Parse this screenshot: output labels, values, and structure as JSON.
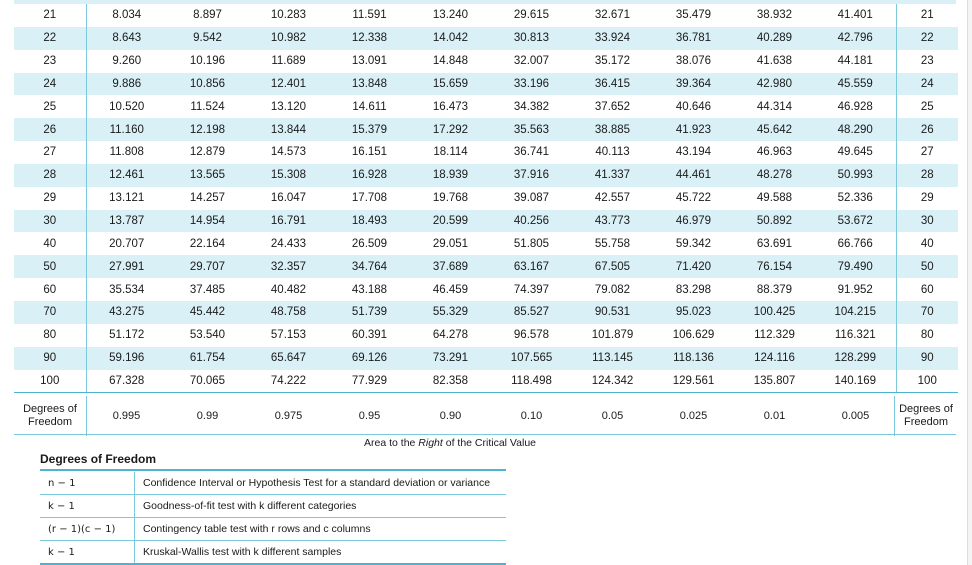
{
  "table": {
    "rows": [
      {
        "df": "21",
        "values": [
          "8.034",
          "8.897",
          "10.283",
          "11.591",
          "13.240",
          "29.615",
          "32.671",
          "35.479",
          "38.932",
          "41.401"
        ]
      },
      {
        "df": "22",
        "values": [
          "8.643",
          "9.542",
          "10.982",
          "12.338",
          "14.042",
          "30.813",
          "33.924",
          "36.781",
          "40.289",
          "42.796"
        ]
      },
      {
        "df": "23",
        "values": [
          "9.260",
          "10.196",
          "11.689",
          "13.091",
          "14.848",
          "32.007",
          "35.172",
          "38.076",
          "41.638",
          "44.181"
        ]
      },
      {
        "df": "24",
        "values": [
          "9.886",
          "10.856",
          "12.401",
          "13.848",
          "15.659",
          "33.196",
          "36.415",
          "39.364",
          "42.980",
          "45.559"
        ]
      },
      {
        "df": "25",
        "values": [
          "10.520",
          "11.524",
          "13.120",
          "14.611",
          "16.473",
          "34.382",
          "37.652",
          "40.646",
          "44.314",
          "46.928"
        ]
      },
      {
        "df": "26",
        "values": [
          "11.160",
          "12.198",
          "13.844",
          "15.379",
          "17.292",
          "35.563",
          "38.885",
          "41.923",
          "45.642",
          "48.290"
        ]
      },
      {
        "df": "27",
        "values": [
          "11.808",
          "12.879",
          "14.573",
          "16.151",
          "18.114",
          "36.741",
          "40.113",
          "43.194",
          "46.963",
          "49.645"
        ]
      },
      {
        "df": "28",
        "values": [
          "12.461",
          "13.565",
          "15.308",
          "16.928",
          "18.939",
          "37.916",
          "41.337",
          "44.461",
          "48.278",
          "50.993"
        ]
      },
      {
        "df": "29",
        "values": [
          "13.121",
          "14.257",
          "16.047",
          "17.708",
          "19.768",
          "39.087",
          "42.557",
          "45.722",
          "49.588",
          "52.336"
        ]
      },
      {
        "df": "30",
        "values": [
          "13.787",
          "14.954",
          "16.791",
          "18.493",
          "20.599",
          "40.256",
          "43.773",
          "46.979",
          "50.892",
          "53.672"
        ]
      },
      {
        "df": "40",
        "values": [
          "20.707",
          "22.164",
          "24.433",
          "26.509",
          "29.051",
          "51.805",
          "55.758",
          "59.342",
          "63.691",
          "66.766"
        ]
      },
      {
        "df": "50",
        "values": [
          "27.991",
          "29.707",
          "32.357",
          "34.764",
          "37.689",
          "63.167",
          "67.505",
          "71.420",
          "76.154",
          "79.490"
        ]
      },
      {
        "df": "60",
        "values": [
          "35.534",
          "37.485",
          "40.482",
          "43.188",
          "46.459",
          "74.397",
          "79.082",
          "83.298",
          "88.379",
          "91.952"
        ]
      },
      {
        "df": "70",
        "values": [
          "43.275",
          "45.442",
          "48.758",
          "51.739",
          "55.329",
          "85.527",
          "90.531",
          "95.023",
          "100.425",
          "104.215"
        ]
      },
      {
        "df": "80",
        "values": [
          "51.172",
          "53.540",
          "57.153",
          "60.391",
          "64.278",
          "96.578",
          "101.879",
          "106.629",
          "112.329",
          "116.321"
        ]
      },
      {
        "df": "90",
        "values": [
          "59.196",
          "61.754",
          "65.647",
          "69.126",
          "73.291",
          "107.565",
          "113.145",
          "118.136",
          "124.116",
          "128.299"
        ]
      },
      {
        "df": "100",
        "values": [
          "67.328",
          "70.065",
          "74.222",
          "77.929",
          "82.358",
          "118.498",
          "124.342",
          "129.561",
          "135.807",
          "140.169"
        ]
      }
    ],
    "footer": {
      "df_left_line1": "Degrees of",
      "df_left_line2": "Freedom",
      "df_right_line1": "Degrees of",
      "df_right_line2": "Freedom",
      "areas": [
        "0.995",
        "0.99",
        "0.975",
        "0.95",
        "0.90",
        "0.10",
        "0.05",
        "0.025",
        "0.01",
        "0.005"
      ]
    },
    "area_caption_before": "Area to the ",
    "area_caption_italic": "Right",
    "area_caption_after": " of the Critical Value"
  },
  "dof_legend": {
    "title": "Degrees of Freedom",
    "rows": [
      {
        "expr": "n − 1",
        "desc": "Confidence Interval or Hypothesis Test for a standard deviation or variance"
      },
      {
        "expr": "k − 1",
        "desc": "Goodness-of-fit test with k different categories"
      },
      {
        "expr": "(r − 1)(c − 1)",
        "desc": "Contingency table test with r rows and c columns"
      },
      {
        "expr": "k − 1",
        "desc": "Kruskal-Wallis test with k different samples"
      }
    ]
  },
  "colors": {
    "row_shade": "#d9f0f7",
    "rule_teal": "#4db3cf",
    "rule_light": "#7cc8dd"
  }
}
